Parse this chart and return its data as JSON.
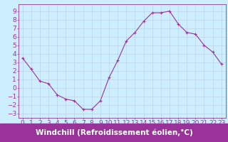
{
  "x": [
    0,
    1,
    2,
    3,
    4,
    5,
    6,
    7,
    8,
    9,
    10,
    11,
    12,
    13,
    14,
    15,
    16,
    17,
    18,
    19,
    20,
    21,
    22,
    23
  ],
  "y": [
    3.5,
    2.2,
    0.8,
    0.5,
    -0.8,
    -1.3,
    -1.5,
    -2.5,
    -2.5,
    -1.5,
    1.2,
    3.2,
    5.5,
    6.5,
    7.8,
    8.8,
    8.8,
    9.0,
    7.5,
    6.5,
    6.3,
    5.0,
    4.2,
    2.8
  ],
  "line_color": "#993399",
  "marker": "+",
  "bg_color": "#cceeff",
  "grid_color": "#bbccdd",
  "xlabel": "Windchill (Refroidissement éolien,°C)",
  "yticks": [
    -3,
    -2,
    -1,
    0,
    1,
    2,
    3,
    4,
    5,
    6,
    7,
    8,
    9
  ],
  "xticks": [
    0,
    1,
    2,
    3,
    4,
    5,
    6,
    7,
    8,
    9,
    10,
    11,
    12,
    13,
    14,
    15,
    16,
    17,
    18,
    19,
    20,
    21,
    22,
    23
  ],
  "xlim": [
    -0.5,
    23.5
  ],
  "ylim": [
    -3.5,
    9.8
  ],
  "xlabel_fontsize": 7.5,
  "tick_fontsize": 6.5,
  "label_color": "#993399",
  "xlabel_bg": "#993399",
  "xlabel_text_color": "#ffffff"
}
